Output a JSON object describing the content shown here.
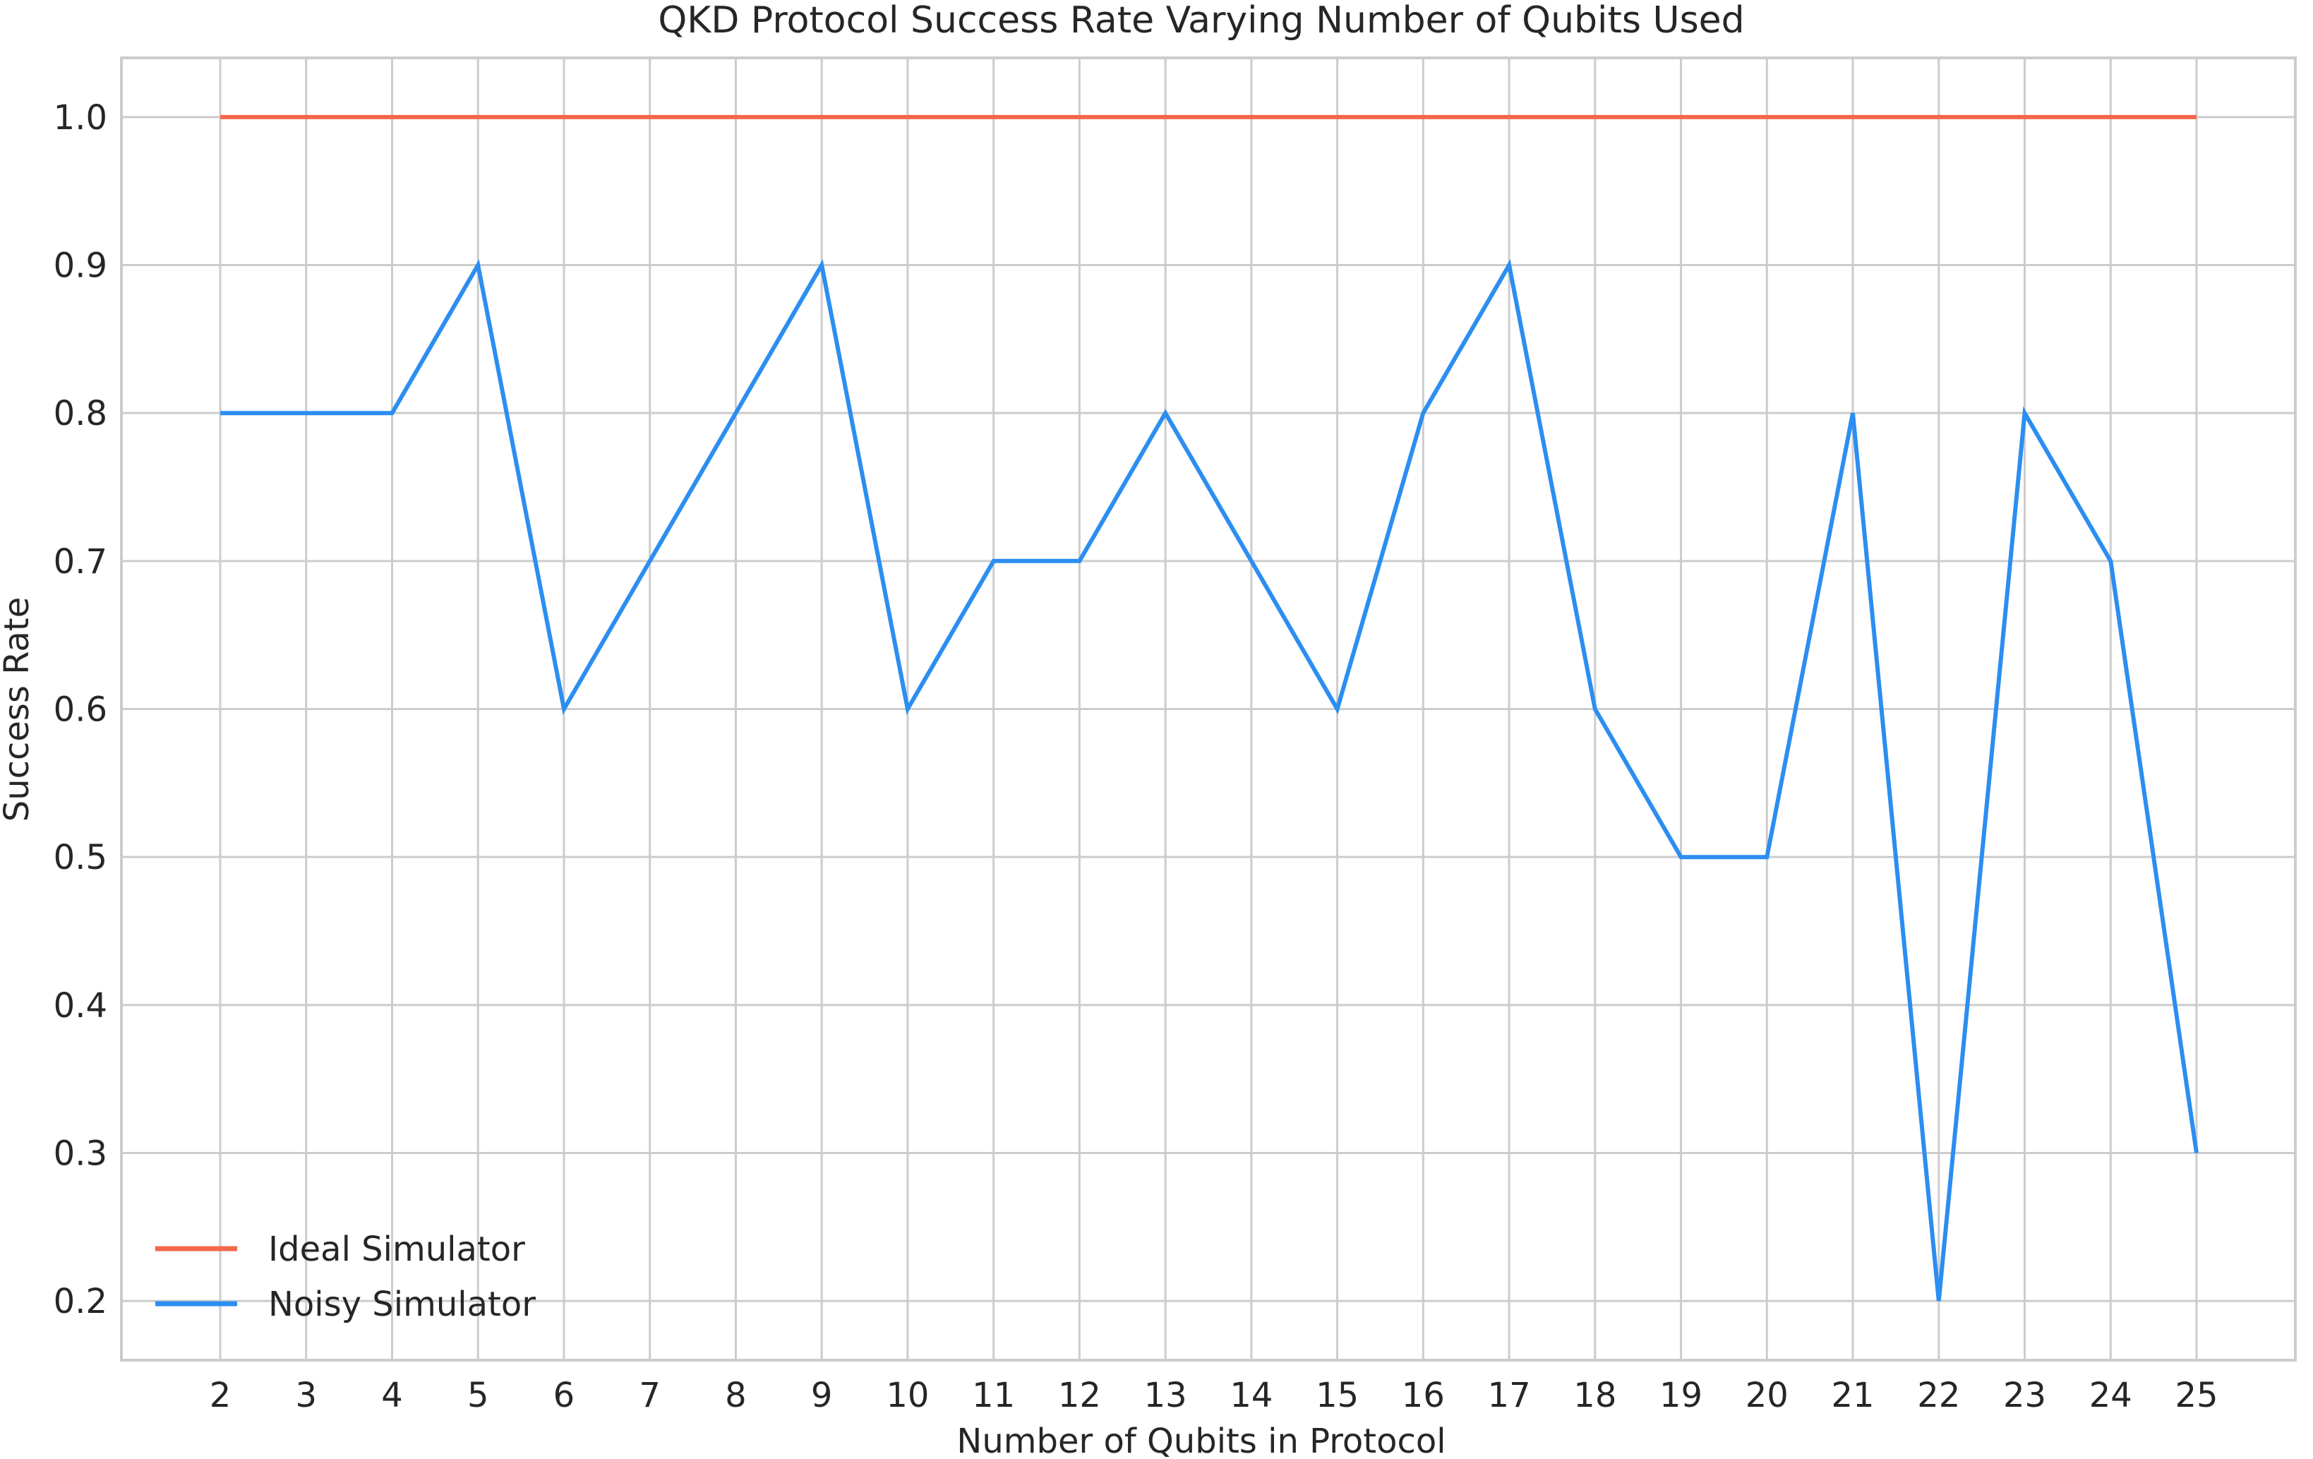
{
  "chart_data": {
    "type": "line",
    "title": "QKD Protocol Success Rate Varying Number of Qubits Used",
    "xlabel": "Number of Qubits in Protocol",
    "ylabel": "Success Rate",
    "x": [
      2,
      3,
      4,
      5,
      6,
      7,
      8,
      9,
      10,
      11,
      12,
      13,
      14,
      15,
      16,
      17,
      18,
      19,
      20,
      21,
      22,
      23,
      24,
      25
    ],
    "xlim": [
      0.85,
      26.15
    ],
    "ylim": [
      0.16,
      1.04
    ],
    "yticks": [
      0.2,
      0.3,
      0.4,
      0.5,
      0.6,
      0.7,
      0.8,
      0.9,
      1.0
    ],
    "ytick_labels": [
      "0.2",
      "0.3",
      "0.4",
      "0.5",
      "0.6",
      "0.7",
      "0.8",
      "0.9",
      "1.0"
    ],
    "grid": true,
    "legend_position": "bottom-left",
    "series": [
      {
        "name": "Ideal Simulator",
        "color": "#f4674a",
        "values": [
          1.0,
          1.0,
          1.0,
          1.0,
          1.0,
          1.0,
          1.0,
          1.0,
          1.0,
          1.0,
          1.0,
          1.0,
          1.0,
          1.0,
          1.0,
          1.0,
          1.0,
          1.0,
          1.0,
          1.0,
          1.0,
          1.0,
          1.0,
          1.0
        ]
      },
      {
        "name": "Noisy Simulator",
        "color": "#2b8ef0",
        "values": [
          0.8,
          0.8,
          0.8,
          0.9,
          0.6,
          0.7,
          0.8,
          0.9,
          0.6,
          0.7,
          0.7,
          0.8,
          0.7,
          0.6,
          0.8,
          0.9,
          0.6,
          0.5,
          0.5,
          0.8,
          0.2,
          0.8,
          0.7,
          0.3
        ]
      }
    ]
  }
}
